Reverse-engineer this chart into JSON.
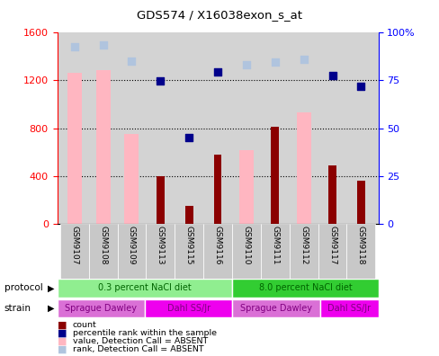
{
  "title": "GDS574 / X16038exon_s_at",
  "samples": [
    "GSM9107",
    "GSM9108",
    "GSM9109",
    "GSM9113",
    "GSM9115",
    "GSM9116",
    "GSM9110",
    "GSM9111",
    "GSM9112",
    "GSM9117",
    "GSM9118"
  ],
  "count_values": [
    null,
    null,
    null,
    400,
    150,
    580,
    null,
    810,
    null,
    490,
    360
  ],
  "percentile_rank": [
    null,
    null,
    null,
    1190,
    720,
    1270,
    null,
    null,
    null,
    1240,
    1150
  ],
  "value_absent": [
    1260,
    1280,
    750,
    null,
    null,
    null,
    620,
    null,
    930,
    null,
    null
  ],
  "rank_absent": [
    1480,
    1490,
    1360,
    null,
    null,
    null,
    1330,
    1350,
    1370,
    null,
    null
  ],
  "left_ylim": [
    0,
    1600
  ],
  "left_yticks": [
    0,
    400,
    800,
    1200,
    1600
  ],
  "right_ylim": [
    0,
    100
  ],
  "right_yticks": [
    0,
    25,
    50,
    75,
    100
  ],
  "right_yticklabels": [
    "0",
    "25",
    "50",
    "75",
    "100%"
  ],
  "protocol_groups": [
    {
      "label": "0.3 percent NaCl diet",
      "start": 0,
      "end": 6,
      "color": "#90ee90"
    },
    {
      "label": "8.0 percent NaCl diet",
      "start": 6,
      "end": 11,
      "color": "#32cd32"
    }
  ],
  "strain_groups": [
    {
      "label": "Sprague Dawley",
      "start": 0,
      "end": 3,
      "color": "#da70d6"
    },
    {
      "label": "Dahl SS/Jr",
      "start": 3,
      "end": 6,
      "color": "#ee00ee"
    },
    {
      "label": "Sprague Dawley",
      "start": 6,
      "end": 9,
      "color": "#da70d6"
    },
    {
      "label": "Dahl SS/Jr",
      "start": 9,
      "end": 11,
      "color": "#ee00ee"
    }
  ],
  "count_color": "#8b0000",
  "percentile_color": "#00008b",
  "value_absent_color": "#ffb6c1",
  "rank_absent_color": "#b0c4de"
}
